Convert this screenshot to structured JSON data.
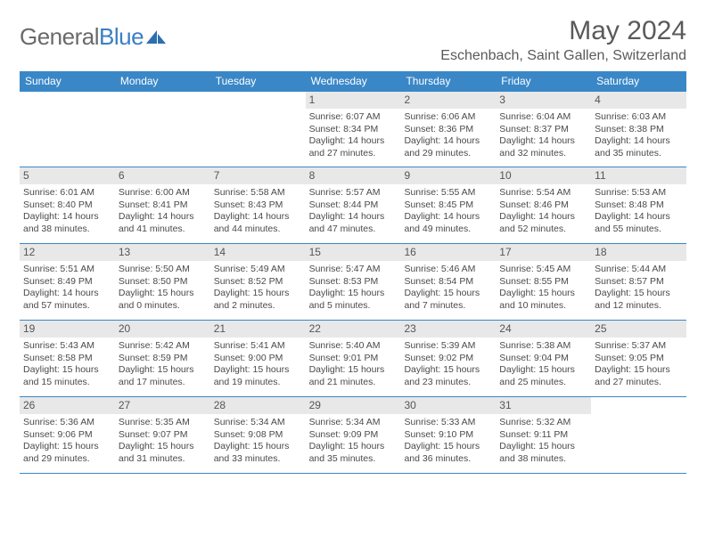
{
  "logo": {
    "word1": "General",
    "word2": "Blue"
  },
  "title": "May 2024",
  "location": "Eschenbach, Saint Gallen, Switzerland",
  "colors": {
    "header_bg": "#3a87c7",
    "header_text": "#ffffff",
    "daynum_bg": "#e8e8e8",
    "body_text": "#4a4a4a",
    "title_text": "#5a5a5a",
    "logo_gray": "#6a6a6a",
    "logo_blue": "#3a7fc4",
    "page_bg": "#ffffff"
  },
  "daysOfWeek": [
    "Sunday",
    "Monday",
    "Tuesday",
    "Wednesday",
    "Thursday",
    "Friday",
    "Saturday"
  ],
  "weeks": [
    [
      {},
      {},
      {},
      {
        "n": "1",
        "sr": "6:07 AM",
        "ss": "8:34 PM",
        "dl1": "14 hours",
        "dl2": "and 27 minutes."
      },
      {
        "n": "2",
        "sr": "6:06 AM",
        "ss": "8:36 PM",
        "dl1": "14 hours",
        "dl2": "and 29 minutes."
      },
      {
        "n": "3",
        "sr": "6:04 AM",
        "ss": "8:37 PM",
        "dl1": "14 hours",
        "dl2": "and 32 minutes."
      },
      {
        "n": "4",
        "sr": "6:03 AM",
        "ss": "8:38 PM",
        "dl1": "14 hours",
        "dl2": "and 35 minutes."
      }
    ],
    [
      {
        "n": "5",
        "sr": "6:01 AM",
        "ss": "8:40 PM",
        "dl1": "14 hours",
        "dl2": "and 38 minutes."
      },
      {
        "n": "6",
        "sr": "6:00 AM",
        "ss": "8:41 PM",
        "dl1": "14 hours",
        "dl2": "and 41 minutes."
      },
      {
        "n": "7",
        "sr": "5:58 AM",
        "ss": "8:43 PM",
        "dl1": "14 hours",
        "dl2": "and 44 minutes."
      },
      {
        "n": "8",
        "sr": "5:57 AM",
        "ss": "8:44 PM",
        "dl1": "14 hours",
        "dl2": "and 47 minutes."
      },
      {
        "n": "9",
        "sr": "5:55 AM",
        "ss": "8:45 PM",
        "dl1": "14 hours",
        "dl2": "and 49 minutes."
      },
      {
        "n": "10",
        "sr": "5:54 AM",
        "ss": "8:46 PM",
        "dl1": "14 hours",
        "dl2": "and 52 minutes."
      },
      {
        "n": "11",
        "sr": "5:53 AM",
        "ss": "8:48 PM",
        "dl1": "14 hours",
        "dl2": "and 55 minutes."
      }
    ],
    [
      {
        "n": "12",
        "sr": "5:51 AM",
        "ss": "8:49 PM",
        "dl1": "14 hours",
        "dl2": "and 57 minutes."
      },
      {
        "n": "13",
        "sr": "5:50 AM",
        "ss": "8:50 PM",
        "dl1": "15 hours",
        "dl2": "and 0 minutes."
      },
      {
        "n": "14",
        "sr": "5:49 AM",
        "ss": "8:52 PM",
        "dl1": "15 hours",
        "dl2": "and 2 minutes."
      },
      {
        "n": "15",
        "sr": "5:47 AM",
        "ss": "8:53 PM",
        "dl1": "15 hours",
        "dl2": "and 5 minutes."
      },
      {
        "n": "16",
        "sr": "5:46 AM",
        "ss": "8:54 PM",
        "dl1": "15 hours",
        "dl2": "and 7 minutes."
      },
      {
        "n": "17",
        "sr": "5:45 AM",
        "ss": "8:55 PM",
        "dl1": "15 hours",
        "dl2": "and 10 minutes."
      },
      {
        "n": "18",
        "sr": "5:44 AM",
        "ss": "8:57 PM",
        "dl1": "15 hours",
        "dl2": "and 12 minutes."
      }
    ],
    [
      {
        "n": "19",
        "sr": "5:43 AM",
        "ss": "8:58 PM",
        "dl1": "15 hours",
        "dl2": "and 15 minutes."
      },
      {
        "n": "20",
        "sr": "5:42 AM",
        "ss": "8:59 PM",
        "dl1": "15 hours",
        "dl2": "and 17 minutes."
      },
      {
        "n": "21",
        "sr": "5:41 AM",
        "ss": "9:00 PM",
        "dl1": "15 hours",
        "dl2": "and 19 minutes."
      },
      {
        "n": "22",
        "sr": "5:40 AM",
        "ss": "9:01 PM",
        "dl1": "15 hours",
        "dl2": "and 21 minutes."
      },
      {
        "n": "23",
        "sr": "5:39 AM",
        "ss": "9:02 PM",
        "dl1": "15 hours",
        "dl2": "and 23 minutes."
      },
      {
        "n": "24",
        "sr": "5:38 AM",
        "ss": "9:04 PM",
        "dl1": "15 hours",
        "dl2": "and 25 minutes."
      },
      {
        "n": "25",
        "sr": "5:37 AM",
        "ss": "9:05 PM",
        "dl1": "15 hours",
        "dl2": "and 27 minutes."
      }
    ],
    [
      {
        "n": "26",
        "sr": "5:36 AM",
        "ss": "9:06 PM",
        "dl1": "15 hours",
        "dl2": "and 29 minutes."
      },
      {
        "n": "27",
        "sr": "5:35 AM",
        "ss": "9:07 PM",
        "dl1": "15 hours",
        "dl2": "and 31 minutes."
      },
      {
        "n": "28",
        "sr": "5:34 AM",
        "ss": "9:08 PM",
        "dl1": "15 hours",
        "dl2": "and 33 minutes."
      },
      {
        "n": "29",
        "sr": "5:34 AM",
        "ss": "9:09 PM",
        "dl1": "15 hours",
        "dl2": "and 35 minutes."
      },
      {
        "n": "30",
        "sr": "5:33 AM",
        "ss": "9:10 PM",
        "dl1": "15 hours",
        "dl2": "and 36 minutes."
      },
      {
        "n": "31",
        "sr": "5:32 AM",
        "ss": "9:11 PM",
        "dl1": "15 hours",
        "dl2": "and 38 minutes."
      },
      {}
    ]
  ],
  "labels": {
    "sunrise": "Sunrise:",
    "sunset": "Sunset:",
    "daylight": "Daylight:"
  }
}
